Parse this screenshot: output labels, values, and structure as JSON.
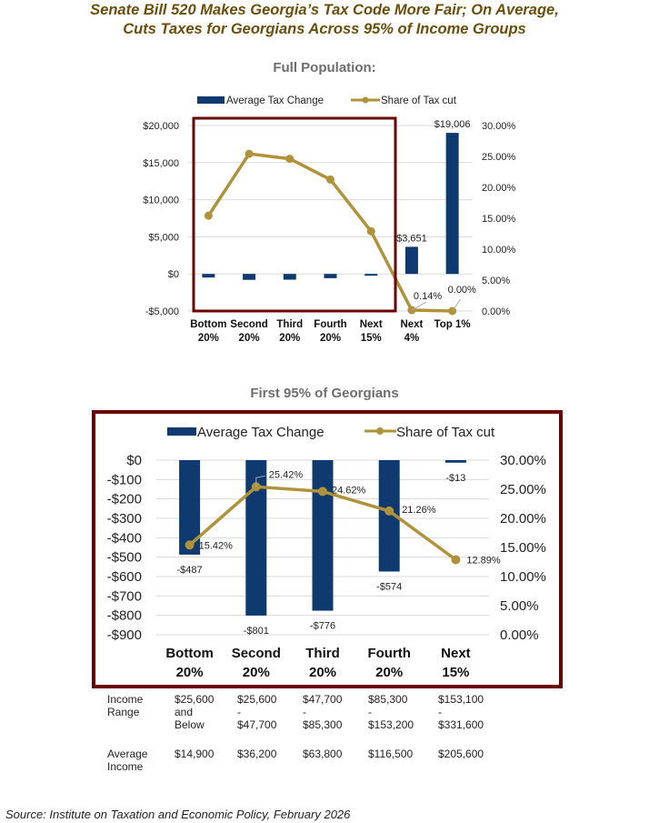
{
  "title_line1": "Senate Bill 520 Makes Georgia’s Tax Code More Fair; On Average,",
  "title_line2": "Cuts Taxes for Georgians Across 95% of Income Groups",
  "colors": {
    "bar": "#0e3a70",
    "line": "#b0923a",
    "frame": "#6b0000",
    "title": "#6b4e0a",
    "grid": "#d9d9d9"
  },
  "chart_data": [
    {
      "type": "bar+line",
      "title": "Full Population:",
      "legend": [
        "Average Tax Change",
        "Share of Tax cut"
      ],
      "legend_position": "top",
      "categories": [
        [
          "Bottom",
          "20%"
        ],
        [
          "Second",
          "20%"
        ],
        [
          "Third",
          "20%"
        ],
        [
          "Fourth",
          "20%"
        ],
        [
          "Next",
          "15%"
        ],
        [
          "Next",
          "4%"
        ],
        [
          "Top 1%",
          ""
        ]
      ],
      "series": [
        {
          "name": "Average Tax Change",
          "axis": "left",
          "type": "bar",
          "values": [
            -487,
            -801,
            -776,
            -574,
            -13,
            3651,
            19006
          ],
          "labels": [
            "",
            "",
            "",
            "",
            "",
            "$3,651",
            "$19,006"
          ]
        },
        {
          "name": "Share of Tax cut",
          "axis": "right",
          "type": "line",
          "values": [
            15.42,
            25.42,
            24.62,
            21.26,
            12.89,
            0.14,
            0.0
          ],
          "labels": [
            "",
            "",
            "",
            "",
            "",
            "0.14%",
            "0.00%"
          ]
        }
      ],
      "y_left": {
        "min": -5000,
        "max": 20000,
        "ticks": [
          "$20,000",
          "$15,000",
          "$10,000",
          "$5,000",
          "$0",
          "-$5,000"
        ],
        "tick_values": [
          20000,
          15000,
          10000,
          5000,
          0,
          -5000
        ]
      },
      "y_right": {
        "min": 0,
        "max": 30,
        "ticks": [
          "30.00%",
          "25.00%",
          "20.00%",
          "15.00%",
          "10.00%",
          "5.00%",
          "0.00%"
        ],
        "tick_values": [
          30,
          25,
          20,
          15,
          10,
          5,
          0
        ]
      },
      "grid": true,
      "highlight_box": "first five groups"
    },
    {
      "type": "bar+line",
      "title": "First 95% of Georgians",
      "legend": [
        "Average Tax Change",
        "Share of Tax cut"
      ],
      "legend_position": "top",
      "categories": [
        [
          "Bottom",
          "20%"
        ],
        [
          "Second",
          "20%"
        ],
        [
          "Third",
          "20%"
        ],
        [
          "Fourth",
          "20%"
        ],
        [
          "Next",
          "15%"
        ]
      ],
      "series": [
        {
          "name": "Average Tax Change",
          "axis": "left",
          "type": "bar",
          "values": [
            -487,
            -801,
            -776,
            -574,
            -13
          ],
          "labels": [
            "-$487",
            "-$801",
            "-$776",
            "-$574",
            "-$13"
          ]
        },
        {
          "name": "Share of Tax cut",
          "axis": "right",
          "type": "line",
          "values": [
            15.42,
            25.42,
            24.62,
            21.26,
            12.89
          ],
          "labels": [
            "15.42%",
            "25.42%",
            "24.62%",
            "21.26%",
            "12.89%"
          ]
        }
      ],
      "y_left": {
        "min": -900,
        "max": 0,
        "ticks": [
          "$0",
          "-$100",
          "-$200",
          "-$300",
          "-$400",
          "-$500",
          "-$600",
          "-$700",
          "-$800",
          "-$900"
        ],
        "tick_values": [
          0,
          -100,
          -200,
          -300,
          -400,
          -500,
          -600,
          -700,
          -800,
          -900
        ]
      },
      "y_right": {
        "min": 0,
        "max": 30,
        "ticks": [
          "30.00%",
          "25.00%",
          "20.00%",
          "15.00%",
          "10.00%",
          "5.00%",
          "0.00%"
        ],
        "tick_values": [
          30,
          25,
          20,
          15,
          10,
          5,
          0
        ]
      },
      "grid": true
    }
  ],
  "table": {
    "income_range_label": [
      "Income",
      "Range"
    ],
    "income_ranges": [
      [
        "$25,600",
        "and",
        "Below"
      ],
      [
        "$25,600",
        "-",
        "$47,700"
      ],
      [
        "$47,700",
        "-",
        "$85,300"
      ],
      [
        "$85,300",
        "-",
        "$153,200"
      ],
      [
        "$153,100",
        "-",
        "$331,600"
      ]
    ],
    "average_income_label": [
      "Average",
      "Income"
    ],
    "average_incomes": [
      "$14,900",
      "$36,200",
      "$63,800",
      "$116,500",
      "$205,600"
    ]
  },
  "source": "Source: Institute on Taxation and Economic Policy, February 2026"
}
